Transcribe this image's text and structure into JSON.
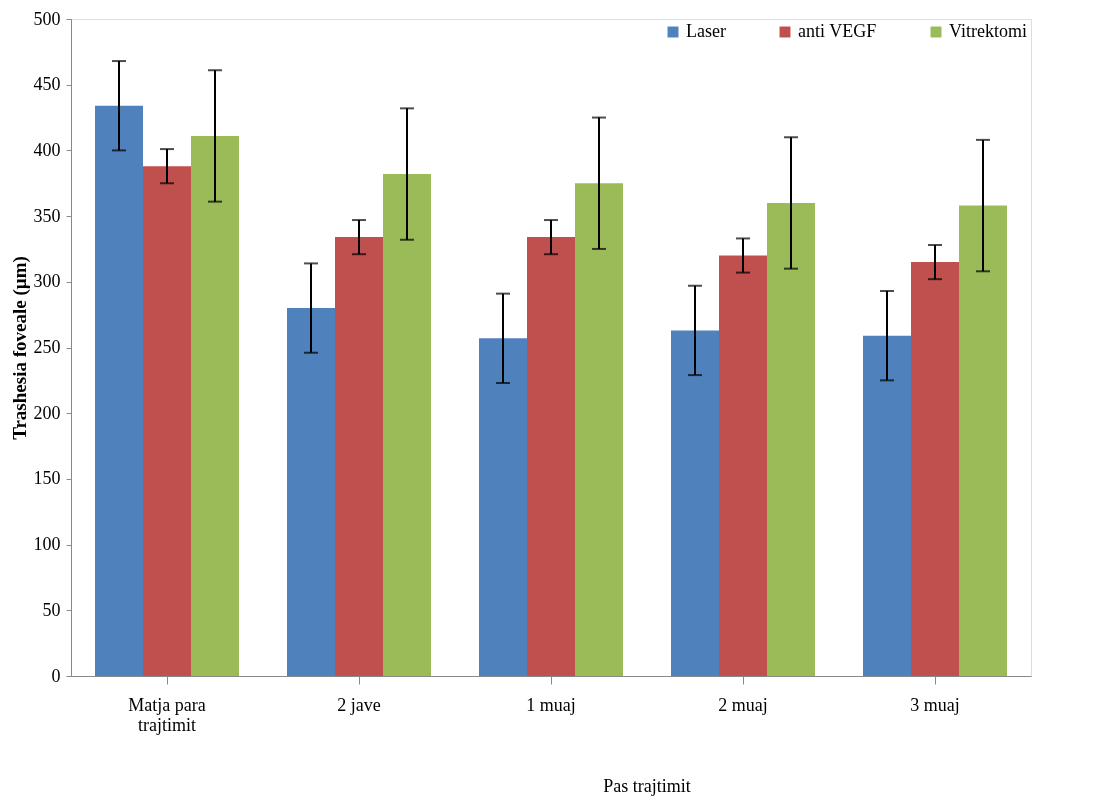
{
  "chart_data": {
    "type": "bar",
    "ylabel": "Trashesia foveale (µm)",
    "categories": [
      "Matja para trajtimit",
      "2 jave",
      "1 muaj",
      "2 muaj",
      "3 muaj"
    ],
    "series": [
      {
        "name": "Laser",
        "color": "#4f81bd",
        "values": [
          434,
          280,
          257,
          263,
          259
        ],
        "errors": [
          34,
          34,
          34,
          34,
          34
        ]
      },
      {
        "name": "anti VEGF",
        "color": "#c0504d",
        "values": [
          388,
          334,
          334,
          320,
          315
        ],
        "errors": [
          13,
          13,
          13,
          13,
          13
        ]
      },
      {
        "name": "Vitrektomi",
        "color": "#9bbb59",
        "values": [
          411,
          382,
          375,
          360,
          358
        ],
        "errors": [
          50,
          50,
          50,
          50,
          50
        ]
      }
    ],
    "ylim": [
      0,
      500
    ],
    "yticks": [
      0,
      50,
      100,
      150,
      200,
      250,
      300,
      350,
      400,
      450,
      500
    ],
    "grid": false,
    "legend": "top right",
    "annotations": [
      "Pas trajtimit"
    ]
  }
}
